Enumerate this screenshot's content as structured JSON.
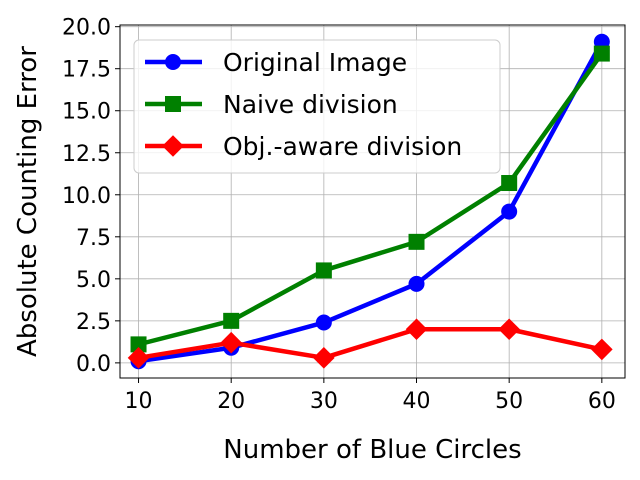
{
  "chart_data": {
    "type": "line",
    "title": "",
    "xlabel": "Number of Blue Circles",
    "ylabel": "Absolute Counting Error",
    "x": [
      10,
      20,
      30,
      40,
      50,
      60
    ],
    "x_ticks": [
      "10",
      "20",
      "30",
      "40",
      "50",
      "60"
    ],
    "y_ticks": [
      "0.0",
      "2.5",
      "5.0",
      "7.5",
      "10.0",
      "12.5",
      "15.0",
      "17.5",
      "20.0"
    ],
    "xlim": [
      8,
      62.5
    ],
    "ylim": [
      -0.9,
      20.1
    ],
    "grid": true,
    "legend_position": "upper-left",
    "series": [
      {
        "name": "Original Image",
        "color": "#0000ff",
        "marker": "circle",
        "values": [
          0.1,
          0.9,
          2.4,
          4.7,
          9.0,
          19.1
        ]
      },
      {
        "name": "Naive division",
        "color": "#008000",
        "marker": "square",
        "values": [
          1.1,
          2.5,
          5.5,
          7.2,
          10.7,
          18.4
        ]
      },
      {
        "name": "Obj.-aware division",
        "color": "#ff0000",
        "marker": "diamond",
        "values": [
          0.3,
          1.2,
          0.3,
          2.0,
          2.0,
          0.8
        ]
      }
    ]
  }
}
